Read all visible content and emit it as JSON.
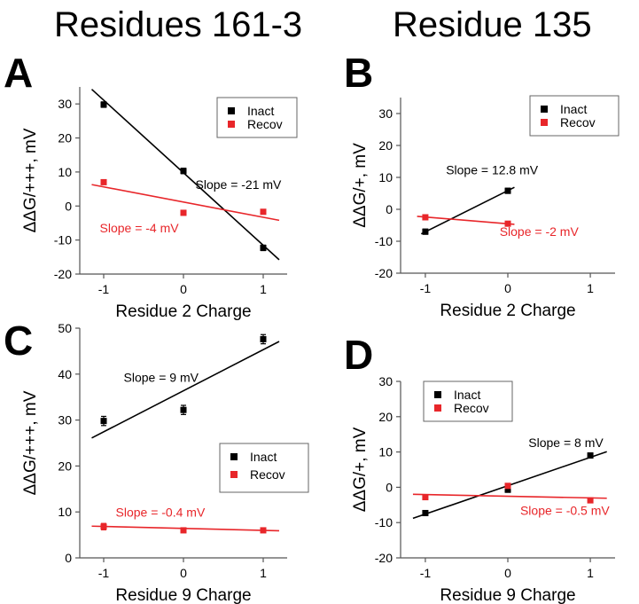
{
  "headers": {
    "left": "Residues 161-3",
    "right": "Residue 135"
  },
  "colors": {
    "inact": "#000000",
    "recov": "#e8262a",
    "axis": "#555555"
  },
  "chart_data": [
    {
      "type": "scatter",
      "panel": "A",
      "xlabel": "Residue 2 Charge",
      "ylabel": "ΔΔG/+++, mV",
      "xlim": [
        -1.3,
        1.3
      ],
      "ylim": [
        -20,
        35
      ],
      "xticks": [
        -1,
        0,
        1
      ],
      "yticks": [
        -20,
        -10,
        0,
        10,
        20,
        30
      ],
      "legend": "top-right",
      "series": [
        {
          "name": "Inact",
          "color": "#000000",
          "x": [
            -1,
            0,
            1
          ],
          "y": [
            29.8,
            10.3,
            -12.3
          ],
          "err": [
            0.8,
            0.8,
            0.8
          ],
          "fit": {
            "x": [
              -1.15,
              1.2
            ],
            "y": [
              34.3,
              -15.8
            ]
          }
        },
        {
          "name": "Recov",
          "color": "#e8262a",
          "x": [
            -1,
            0,
            1
          ],
          "y": [
            7.0,
            -2.0,
            -1.7
          ],
          "err": [
            0.6,
            0.6,
            0.6
          ],
          "fit": {
            "x": [
              -1.15,
              1.2
            ],
            "y": [
              6.3,
              -4.2
            ]
          }
        }
      ],
      "annotations": [
        {
          "text": "Slope = -21 mV",
          "x": 0.15,
          "y": 5,
          "color": "#000000"
        },
        {
          "text": "Slope = -4 mV",
          "x": -1.05,
          "y": -7.8,
          "color": "#e8262a"
        }
      ]
    },
    {
      "type": "scatter",
      "panel": "B",
      "xlabel": "Residue 2 Charge",
      "ylabel": "ΔΔG/+, mV",
      "xlim": [
        -1.3,
        1.3
      ],
      "ylim": [
        -20,
        35
      ],
      "xticks": [
        -1,
        0,
        1
      ],
      "yticks": [
        -20,
        -10,
        0,
        10,
        20,
        30
      ],
      "legend": "top-right",
      "series": [
        {
          "name": "Inact",
          "color": "#000000",
          "x": [
            -1,
            0
          ],
          "y": [
            -7.0,
            5.8
          ],
          "err": [
            0.8,
            0.8
          ],
          "fit": {
            "x": [
              -1.05,
              0.08
            ],
            "y": [
              -7.7,
              6.9
            ]
          }
        },
        {
          "name": "Recov",
          "color": "#e8262a",
          "x": [
            -1,
            0
          ],
          "y": [
            -2.5,
            -4.5
          ],
          "err": [
            0.7,
            0.7
          ],
          "fit": {
            "x": [
              -1.1,
              0.08
            ],
            "y": [
              -2.2,
              -4.7
            ]
          }
        }
      ],
      "annotations": [
        {
          "text": "Slope = 12.8 mV",
          "x": -0.75,
          "y": 11,
          "color": "#000000"
        },
        {
          "text": "Slope = -2 mV",
          "x": -0.1,
          "y": -8.4,
          "color": "#e8262a"
        }
      ]
    },
    {
      "type": "scatter",
      "panel": "C",
      "xlabel": "Residue 9 Charge",
      "ylabel": "ΔΔG/+++, mV",
      "xlim": [
        -1.3,
        1.3
      ],
      "ylim": [
        0,
        50
      ],
      "xticks": [
        -1,
        0,
        1
      ],
      "yticks": [
        0,
        10,
        20,
        30,
        40,
        50
      ],
      "legend": "middle-right",
      "series": [
        {
          "name": "Inact",
          "color": "#000000",
          "x": [
            -1,
            0,
            1
          ],
          "y": [
            29.8,
            32.2,
            47.6
          ],
          "err": [
            1.0,
            1.0,
            1.0
          ],
          "fit": {
            "x": [
              -1.15,
              1.2
            ],
            "y": [
              26.1,
              47.1
            ]
          }
        },
        {
          "name": "Recov",
          "color": "#e8262a",
          "x": [
            -1,
            0,
            1
          ],
          "y": [
            6.8,
            6.0,
            6.0
          ],
          "err": [
            0.7,
            0.5,
            0.5
          ],
          "fit": {
            "x": [
              -1.15,
              1.2
            ],
            "y": [
              6.9,
              5.9
            ]
          }
        }
      ],
      "annotations": [
        {
          "text": "Slope = 9 mV",
          "x": -0.75,
          "y": 38.3,
          "color": "#000000"
        },
        {
          "text": "Slope = -0.4 mV",
          "x": -0.85,
          "y": 9,
          "color": "#e8262a"
        }
      ]
    },
    {
      "type": "scatter",
      "panel": "D",
      "xlabel": "Residue 9 Charge",
      "ylabel": "ΔΔG/+, mV",
      "xlim": [
        -1.3,
        1.3
      ],
      "ylim": [
        -20,
        30
      ],
      "xticks": [
        -1,
        0,
        1
      ],
      "yticks": [
        -20,
        -10,
        0,
        10,
        20,
        30
      ],
      "legend": "top-left",
      "series": [
        {
          "name": "Inact",
          "color": "#000000",
          "x": [
            -1,
            0,
            1
          ],
          "y": [
            -7.3,
            -0.7,
            9.0
          ],
          "err": [
            0.7,
            0.7,
            0.7
          ],
          "fit": {
            "x": [
              -1.15,
              1.2
            ],
            "y": [
              -8.8,
              10.1
            ]
          }
        },
        {
          "name": "Recov",
          "color": "#e8262a",
          "x": [
            -1,
            0,
            1
          ],
          "y": [
            -2.8,
            0.4,
            -3.7
          ],
          "err": [
            0.5,
            0.5,
            0.5
          ],
          "fit": {
            "x": [
              -1.15,
              1.2
            ],
            "y": [
              -2.0,
              -3.1
            ]
          }
        }
      ],
      "annotations": [
        {
          "text": "Slope = 8 mV",
          "x": 0.25,
          "y": 11.4,
          "color": "#000000"
        },
        {
          "text": "Slope = -0.5 mV",
          "x": 0.15,
          "y": -7.8,
          "color": "#e8262a"
        }
      ]
    }
  ]
}
